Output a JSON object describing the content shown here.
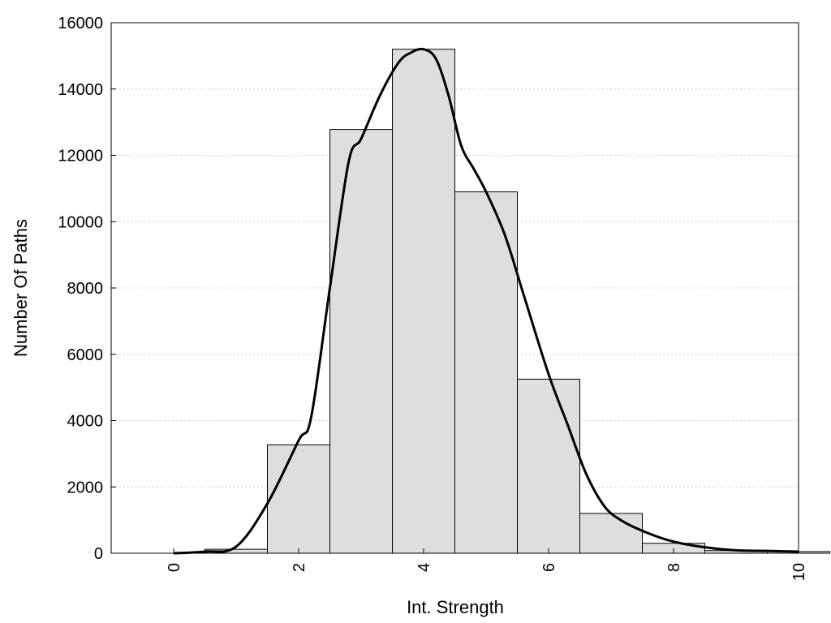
{
  "chart_data": {
    "type": "bar",
    "title": "",
    "xlabel": "Int. Strength",
    "ylabel": "Number Of Paths",
    "xlim": [
      -1,
      10
    ],
    "ylim": [
      0,
      16000
    ],
    "grid": {
      "y": true,
      "x": false
    },
    "legend": "none",
    "xticks": [
      0,
      2,
      4,
      6,
      8,
      10
    ],
    "yticks": [
      0,
      2000,
      4000,
      6000,
      8000,
      10000,
      12000,
      14000,
      16000
    ],
    "bins": [
      {
        "x": 0,
        "value": 0
      },
      {
        "x": 1,
        "value": 120
      },
      {
        "x": 2,
        "value": 3270
      },
      {
        "x": 3,
        "value": 12780
      },
      {
        "x": 4,
        "value": 15200
      },
      {
        "x": 5,
        "value": 10900
      },
      {
        "x": 6,
        "value": 5250
      },
      {
        "x": 7,
        "value": 1200
      },
      {
        "x": 8,
        "value": 300
      },
      {
        "x": 9,
        "value": 80
      },
      {
        "x": 10,
        "value": 50
      }
    ],
    "curve": {
      "x": [
        0,
        0.5,
        1,
        1.5,
        2,
        2.2,
        2.5,
        2.8,
        3,
        3.3,
        3.6,
        3.8,
        4,
        4.2,
        4.4,
        4.6,
        4.8,
        5,
        5.3,
        5.6,
        6,
        6.3,
        6.6,
        6.9,
        7.2,
        7.6,
        8,
        8.5,
        9,
        9.5,
        10
      ],
      "y": [
        0,
        50,
        200,
        1500,
        3400,
        4100,
        8000,
        11800,
        12500,
        13800,
        14800,
        15100,
        15200,
        14900,
        13800,
        12300,
        11600,
        10900,
        9600,
        7800,
        5400,
        3900,
        2400,
        1400,
        950,
        600,
        350,
        180,
        90,
        70,
        50
      ]
    },
    "colors": {
      "bar_fill": "#dedede",
      "bar_stroke": "#000000",
      "curve": "#000000",
      "grid": "#cfcfcf"
    }
  }
}
